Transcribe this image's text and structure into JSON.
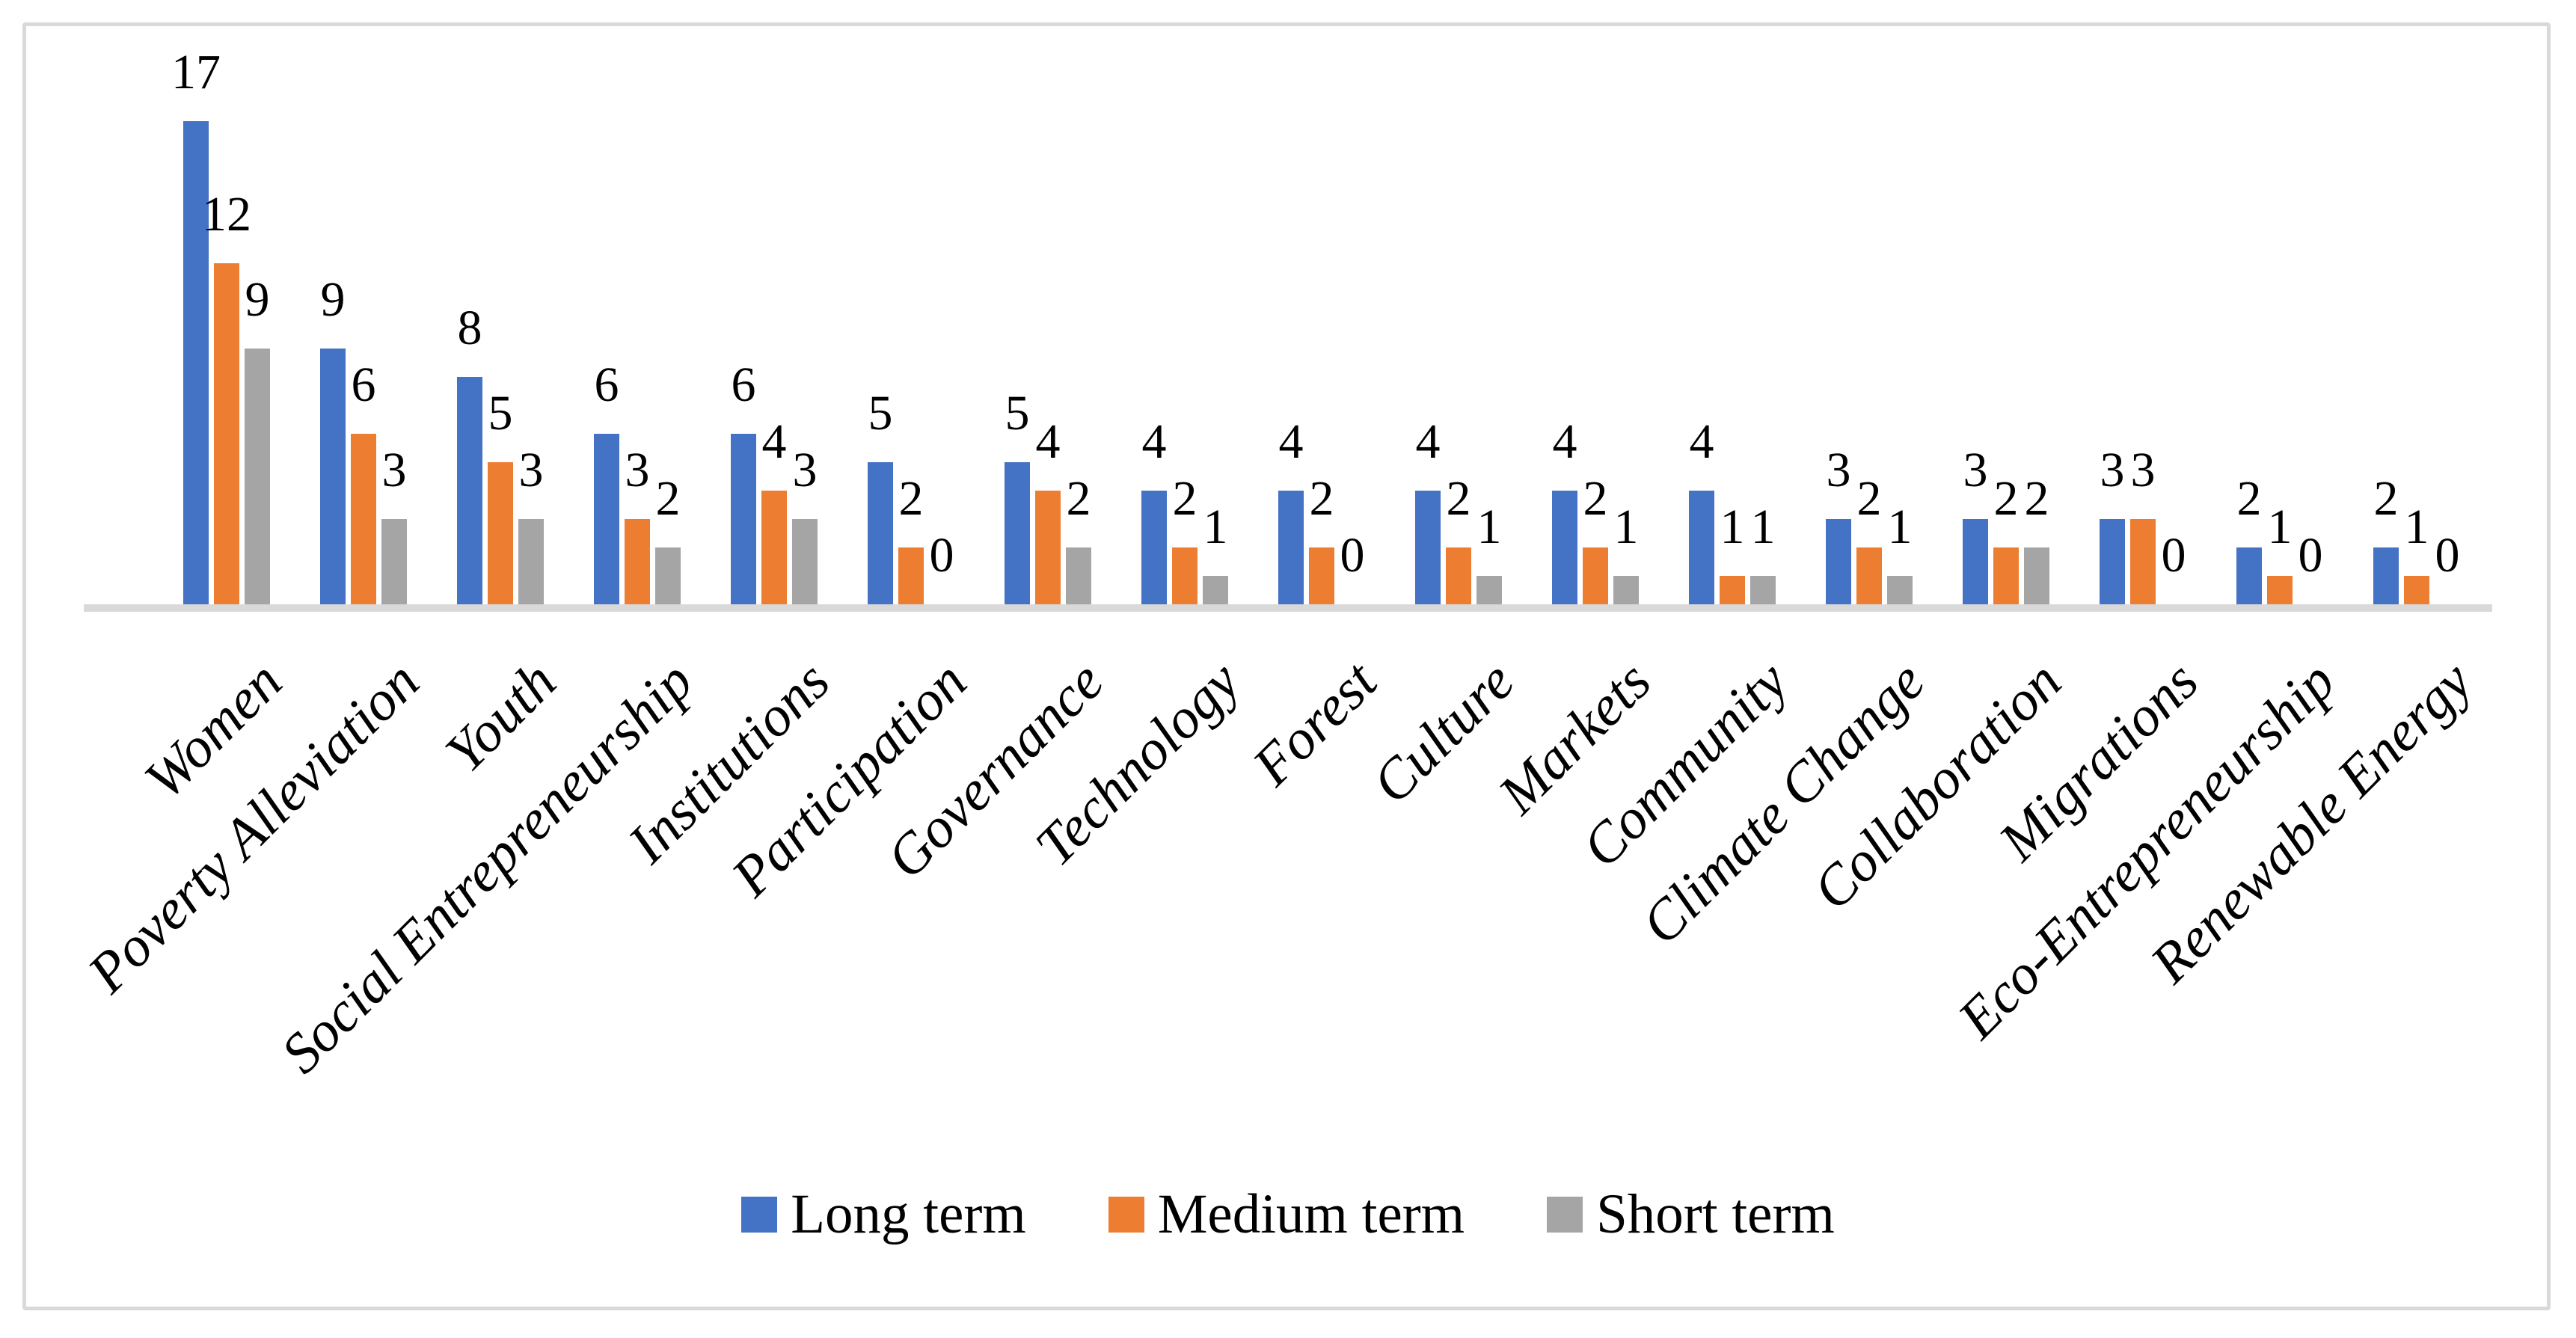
{
  "figure": {
    "background": "#ffffff",
    "frame_border_color": "#d9d9d9"
  },
  "chart_data": {
    "type": "bar",
    "title": "",
    "xlabel": "",
    "ylabel": "",
    "ylim": [
      0,
      18
    ],
    "grid": false,
    "y_axis_visible": false,
    "data_labels": true,
    "baseline_color": "#d9d9d9",
    "legend_position": "bottom",
    "categories": [
      "Women",
      "Poverty Alleviation",
      "Youth",
      "Social Entrepreneurship",
      "Institutions",
      "Participation",
      "Governance",
      "Technology",
      "Forest",
      "Culture",
      "Markets",
      "Community",
      "Climate Change",
      "Collaboration",
      "Migrations",
      "Eco-Entrepreneurship",
      "Renewable Energy"
    ],
    "series": [
      {
        "name": "Long term",
        "color": "#4472C4",
        "values": [
          17,
          9,
          8,
          6,
          6,
          5,
          5,
          4,
          4,
          4,
          4,
          4,
          3,
          3,
          3,
          2,
          2
        ]
      },
      {
        "name": "Medium term",
        "color": "#ED7D31",
        "values": [
          12,
          6,
          5,
          3,
          4,
          2,
          4,
          2,
          2,
          2,
          2,
          1,
          2,
          2,
          3,
          1,
          1
        ]
      },
      {
        "name": "Short term",
        "color": "#A5A5A5",
        "values": [
          9,
          3,
          3,
          2,
          3,
          0,
          2,
          1,
          0,
          1,
          1,
          1,
          1,
          2,
          0,
          0,
          0
        ]
      }
    ]
  }
}
